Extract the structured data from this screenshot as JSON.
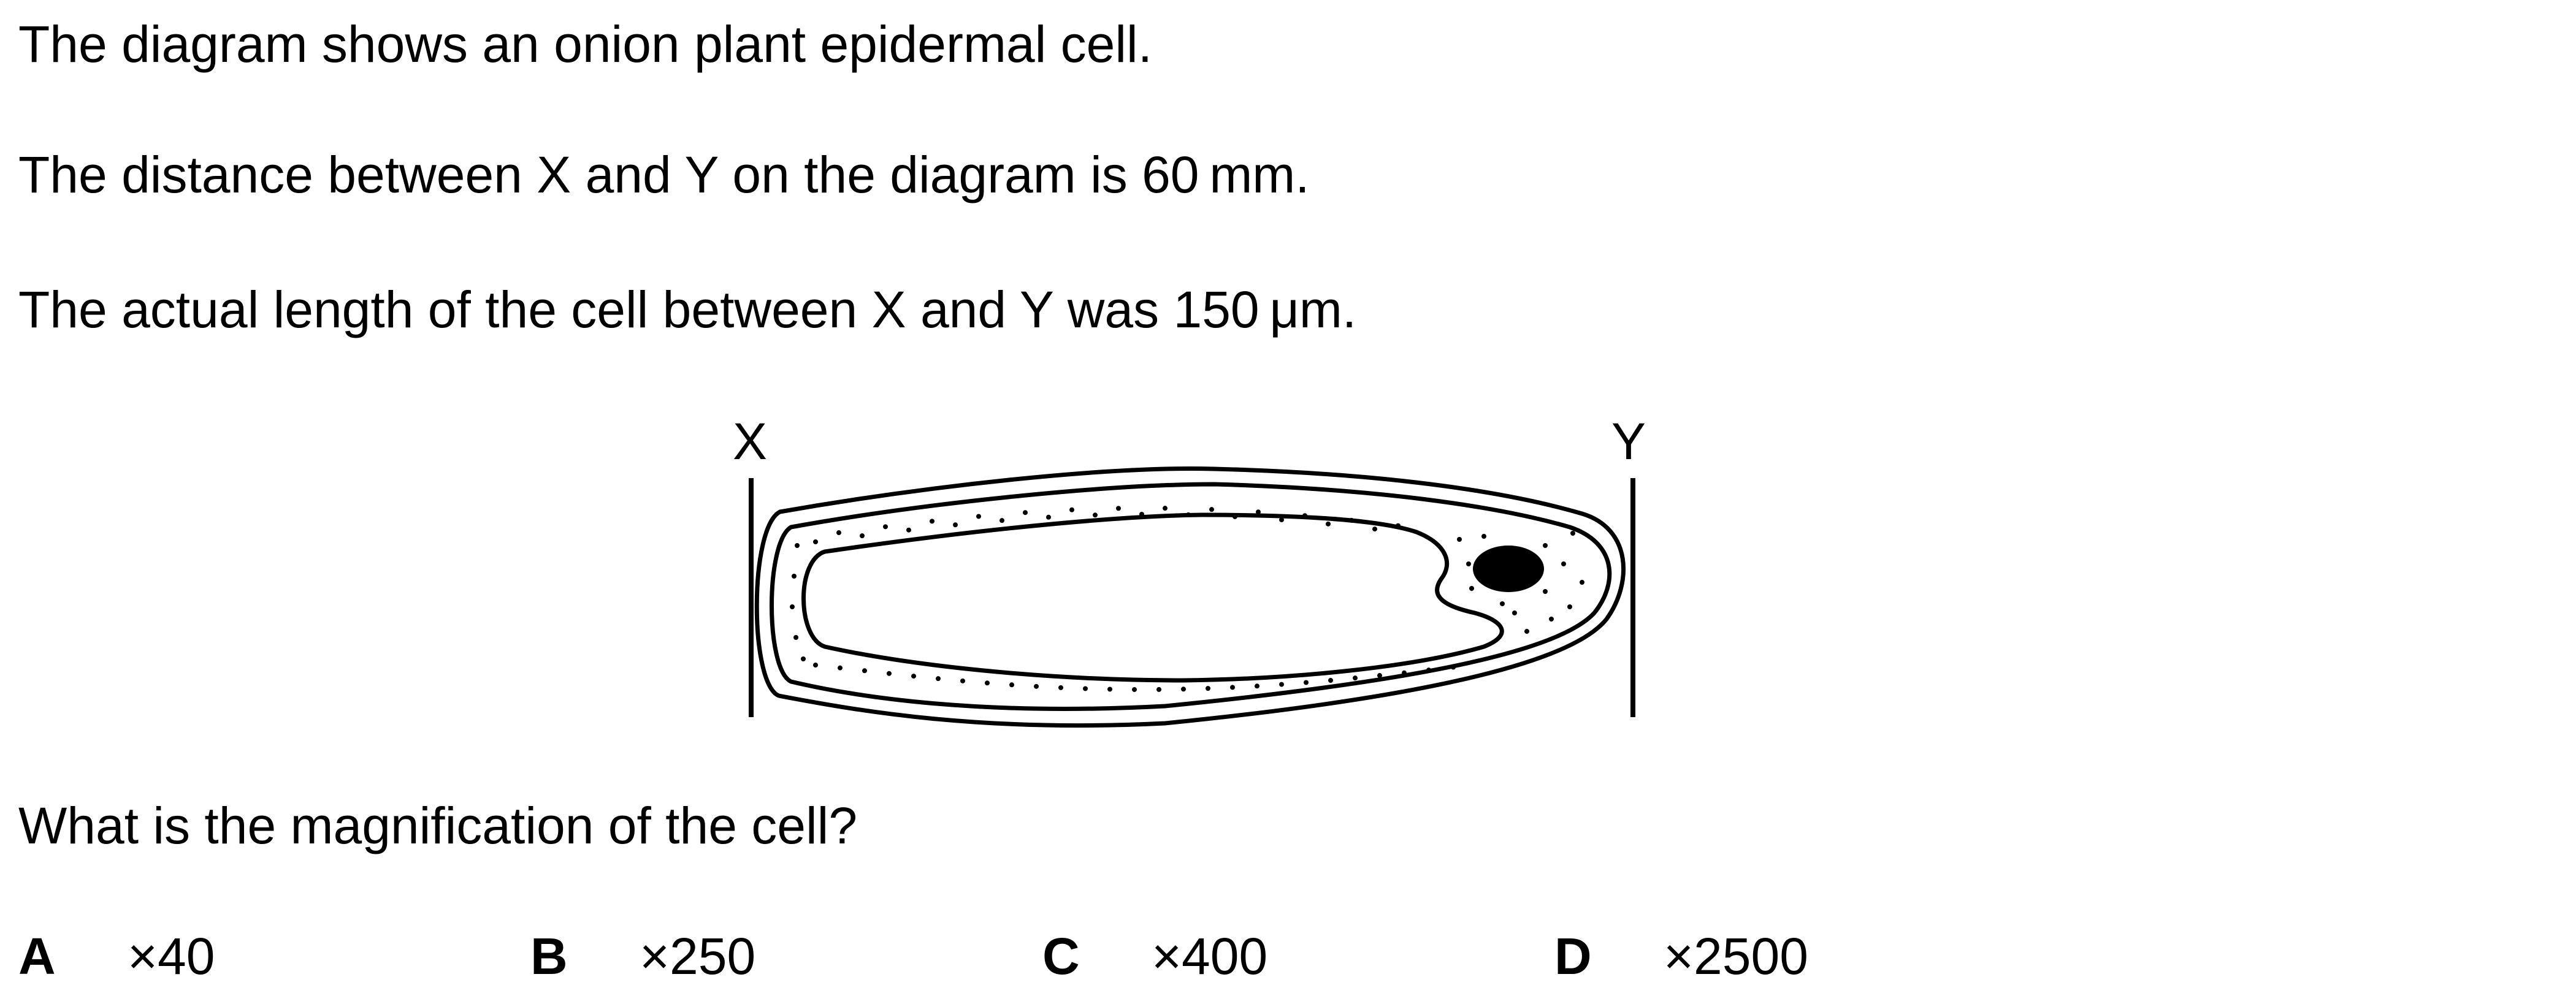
{
  "question": {
    "line1": "The diagram shows an onion plant epidermal cell.",
    "line2": "The distance between X and Y on the diagram is 60 mm.",
    "line3": "The actual length of the cell between X and Y was 150 μm.",
    "prompt": "What is the magnification of the cell?"
  },
  "diagram": {
    "label_left": "X",
    "label_right": "Y"
  },
  "options": [
    {
      "letter": "A",
      "value": "×40"
    },
    {
      "letter": "B",
      "value": "×250"
    },
    {
      "letter": "C",
      "value": "×400"
    },
    {
      "letter": "D",
      "value": "×2500"
    }
  ]
}
